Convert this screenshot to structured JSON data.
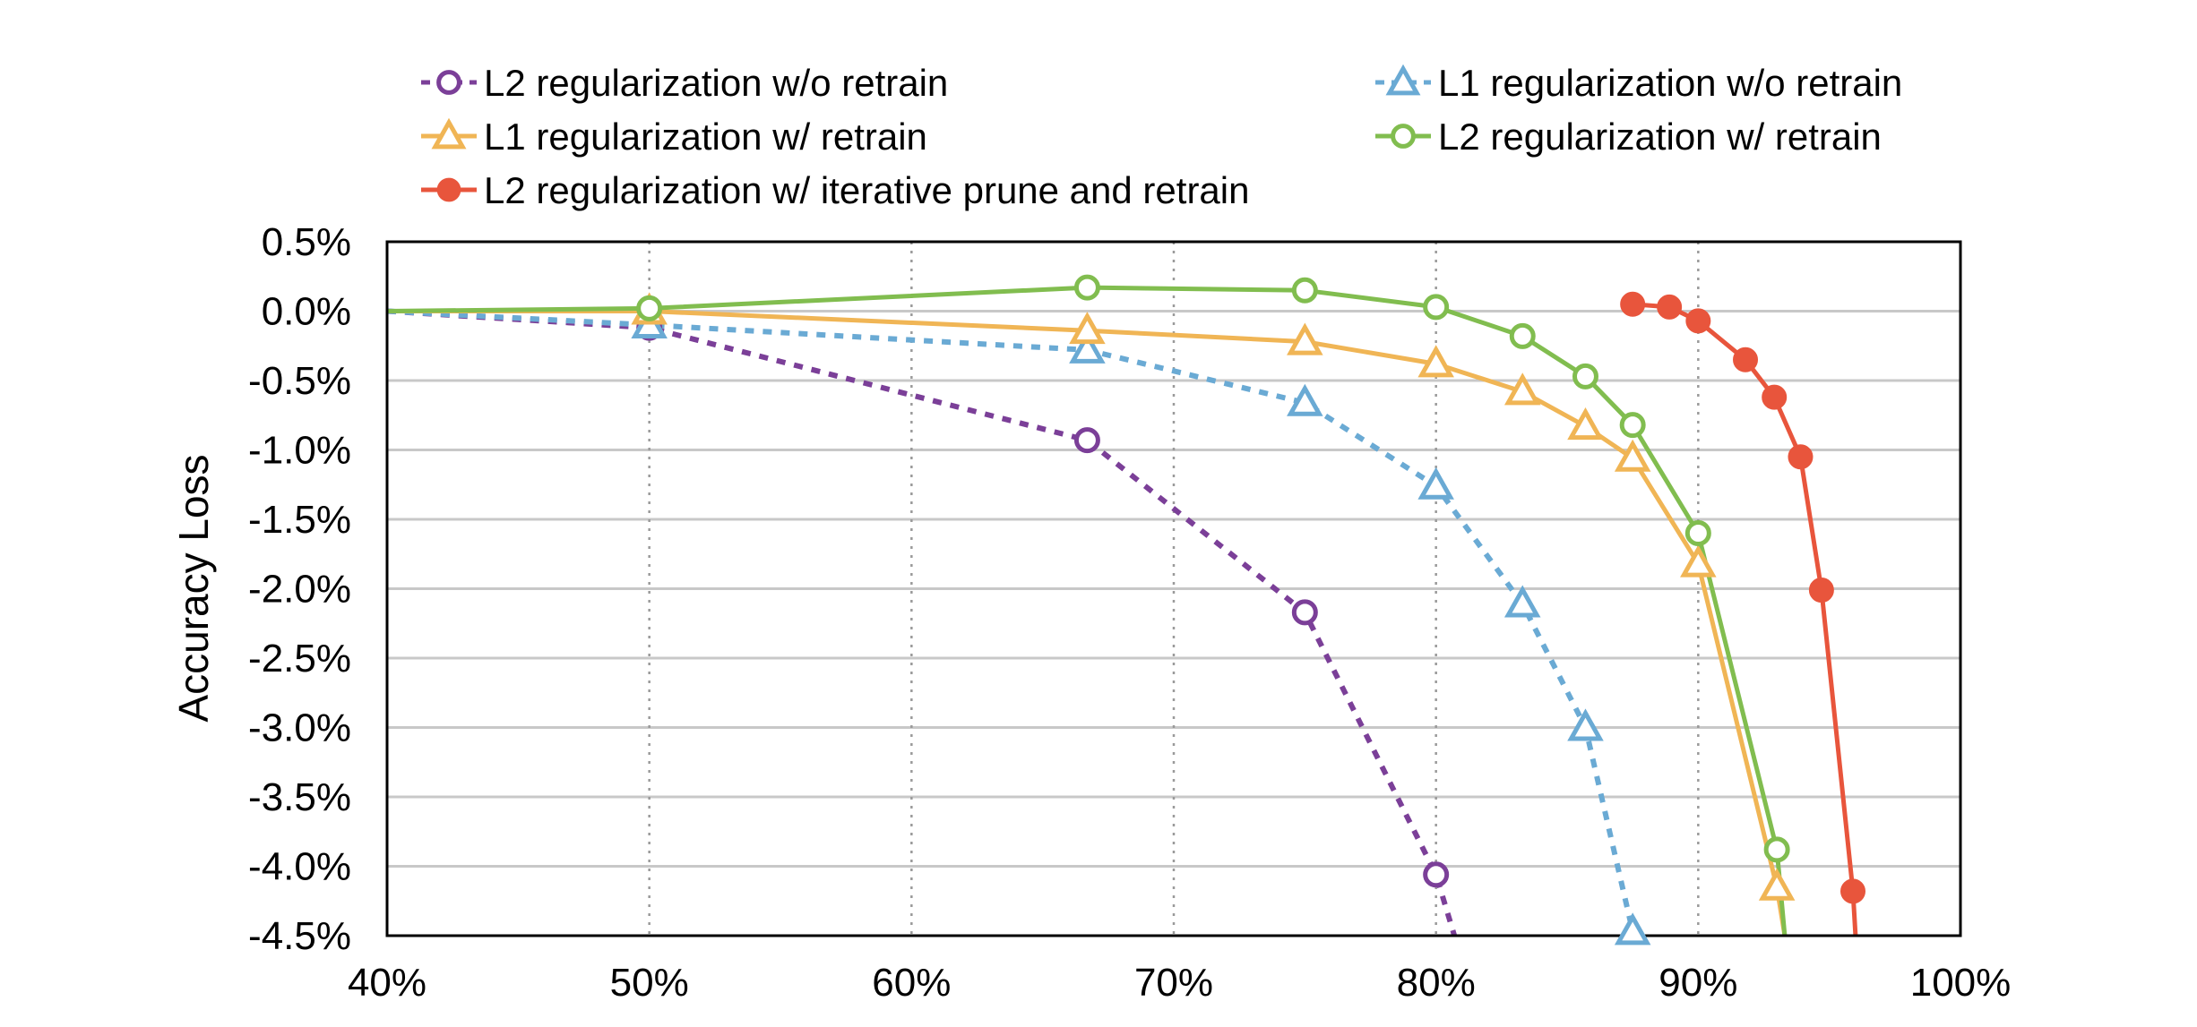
{
  "chart_data": {
    "type": "line",
    "title": "",
    "xlabel": "",
    "ylabel": "Accuracy Loss",
    "xlim": [
      40,
      100
    ],
    "ylim": [
      -4.5,
      0.5
    ],
    "x_ticks": [
      "40%",
      "50%",
      "60%",
      "70%",
      "80%",
      "90%",
      "100%"
    ],
    "y_ticks": [
      "0.5%",
      "0.0%",
      "-0.5%",
      "-1.0%",
      "-1.5%",
      "-2.0%",
      "-2.5%",
      "-3.0%",
      "-3.5%",
      "-4.0%",
      "-4.5%"
    ],
    "grid": {
      "horizontal": "solid",
      "vertical": "dotted"
    },
    "legend": "top",
    "series": [
      {
        "name": "L2 regularization w/o retrain",
        "color": "#7b3f98",
        "line": "dashed",
        "marker": "open-circle",
        "x": [
          40,
          50,
          66.7,
          75,
          80
        ],
        "y": [
          0.0,
          -0.12,
          -0.93,
          -2.17,
          -4.06
        ],
        "tail": [
          80.7,
          -4.5
        ]
      },
      {
        "name": "L1 regularization w/o retrain",
        "color": "#6aaad4",
        "line": "dashed",
        "marker": "open-triangle",
        "x": [
          40,
          50,
          66.7,
          75,
          80,
          83.3,
          85.7,
          87.5
        ],
        "y": [
          0.0,
          -0.1,
          -0.28,
          -0.66,
          -1.26,
          -2.11,
          -3.0,
          -4.47
        ]
      },
      {
        "name": "L1 regularization w/ retrain",
        "color": "#f0b555",
        "line": "solid",
        "marker": "open-triangle",
        "x": [
          40,
          50,
          66.7,
          75,
          80,
          83.3,
          85.7,
          87.5,
          90,
          93
        ],
        "y": [
          0.0,
          0.0,
          -0.14,
          -0.22,
          -0.38,
          -0.58,
          -0.83,
          -1.06,
          -1.82,
          -4.15
        ],
        "tail": [
          93.3,
          -4.5
        ]
      },
      {
        "name": "L2 regularization w/ retrain",
        "color": "#81bd4f",
        "line": "solid",
        "marker": "open-circle",
        "x": [
          40,
          50,
          66.7,
          75,
          80,
          83.3,
          85.7,
          87.5,
          90,
          93
        ],
        "y": [
          0.0,
          0.02,
          0.17,
          0.15,
          0.03,
          -0.18,
          -0.47,
          -0.82,
          -1.6,
          -3.88
        ],
        "tail": [
          93.3,
          -4.5
        ]
      },
      {
        "name": "L2 regularization w/ iterative prune and retrain",
        "color": "#e8553c",
        "line": "solid",
        "marker": "filled-circle",
        "x": [
          87.5,
          88.9,
          90,
          91.8,
          92.9,
          93.9,
          94.7,
          95.9
        ],
        "y": [
          0.05,
          0.03,
          -0.07,
          -0.35,
          -0.62,
          -1.05,
          -2.01,
          -4.18
        ],
        "tail": [
          96.0,
          -4.5
        ]
      }
    ]
  }
}
